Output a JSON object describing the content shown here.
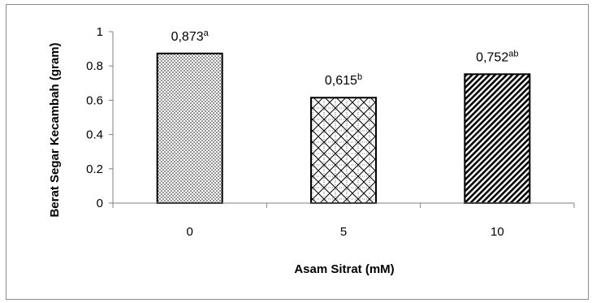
{
  "chart_data": {
    "type": "bar",
    "categories": [
      "0",
      "5",
      "10"
    ],
    "values": [
      0.873,
      0.615,
      0.752
    ],
    "data_labels": [
      {
        "value": "0,873",
        "sup": "a"
      },
      {
        "value": "0,615",
        "sup": "b"
      },
      {
        "value": "0,752",
        "sup": "ab"
      }
    ],
    "xlabel": "Asam Sitrat (mM)",
    "ylabel": "Berat Segar Kecambah (gram)",
    "ylim": [
      0,
      1
    ],
    "yticks": [
      "0",
      "0.2",
      "0.4",
      "0.6",
      "0.8",
      "1"
    ],
    "grid": false,
    "legend": "none",
    "bar_patterns": [
      "dots",
      "crosshatch",
      "diagonal-stripes"
    ],
    "colors": {
      "bar_fill": "#ffffff",
      "bar_stroke": "#000000",
      "axis": "#808080",
      "frame": "#8c8c8c"
    }
  }
}
